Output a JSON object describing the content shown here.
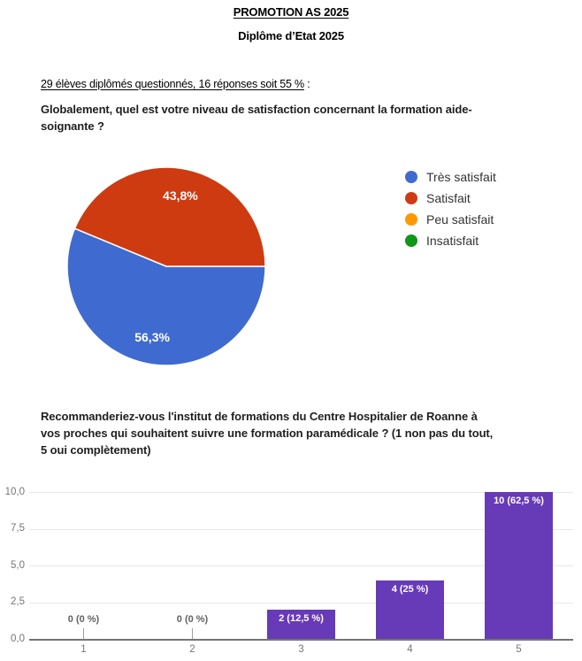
{
  "document": {
    "title": "PROMOTION AS 2025",
    "subtitle": "Diplôme d’Etat 2025",
    "respondents_line": {
      "underlined": "29 élèves diplômés questionnés, 16 réponses soit 55 %",
      "suffix": " :"
    },
    "question1": {
      "line1": "Globalement, quel est votre niveau de satisfaction concernant la formation aide-",
      "line2": "soignante ?"
    },
    "question2": {
      "line1": "Recommanderiez-vous l'institut de formations du Centre Hospitalier de Roanne à",
      "line2": "vos proches qui souhaitent suivre une formation paramédicale ? (1 non pas du tout,",
      "line3": "5 oui complètement)"
    }
  },
  "chart_data": [
    {
      "type": "pie",
      "title": "Globalement, quel est votre niveau de satisfaction concernant la formation aide-soignante ?",
      "labels": [
        "Très satisfait",
        "Satisfait",
        "Peu satisfait",
        "Insatisfait"
      ],
      "values_pct": [
        56.3,
        43.8,
        0,
        0
      ],
      "slice_labels": [
        "56,3%",
        "43,8%",
        "",
        ""
      ],
      "colors": [
        "#3f6bd0",
        "#ce3b11",
        "#ff9900",
        "#109618"
      ],
      "legend_position": "right",
      "start_angle_deg": 0,
      "direction": "clockwise",
      "slice_border_color": "#ffffff"
    },
    {
      "type": "bar",
      "title": "Recommanderiez-vous l'institut de formations du Centre Hospitalier de Roanne à vos proches qui souhaitent suivre une formation paramédicale ? (1 non pas du tout, 5 oui complètement)",
      "categories": [
        "1",
        "2",
        "3",
        "4",
        "5"
      ],
      "values": [
        0,
        0,
        2,
        4,
        10
      ],
      "annotations": [
        "0 (0 %)",
        "0 (0 %)",
        "2 (12,5 %)",
        "4 (25 %)",
        "10 (62,5 %)"
      ],
      "bar_color": "#673ab7",
      "annotation_color_inside": "#ffffff",
      "annotation_color_zero": "#616161",
      "xlabel": "",
      "ylabel": "",
      "ylim": [
        0,
        10
      ],
      "yticks": [
        "0,0",
        "2,5",
        "5,0",
        "7,5",
        "10,0"
      ],
      "grid": true,
      "gridline_color": "#e8e8e8",
      "baseline_color": "#757575",
      "axis_label_color": "#757575"
    }
  ]
}
